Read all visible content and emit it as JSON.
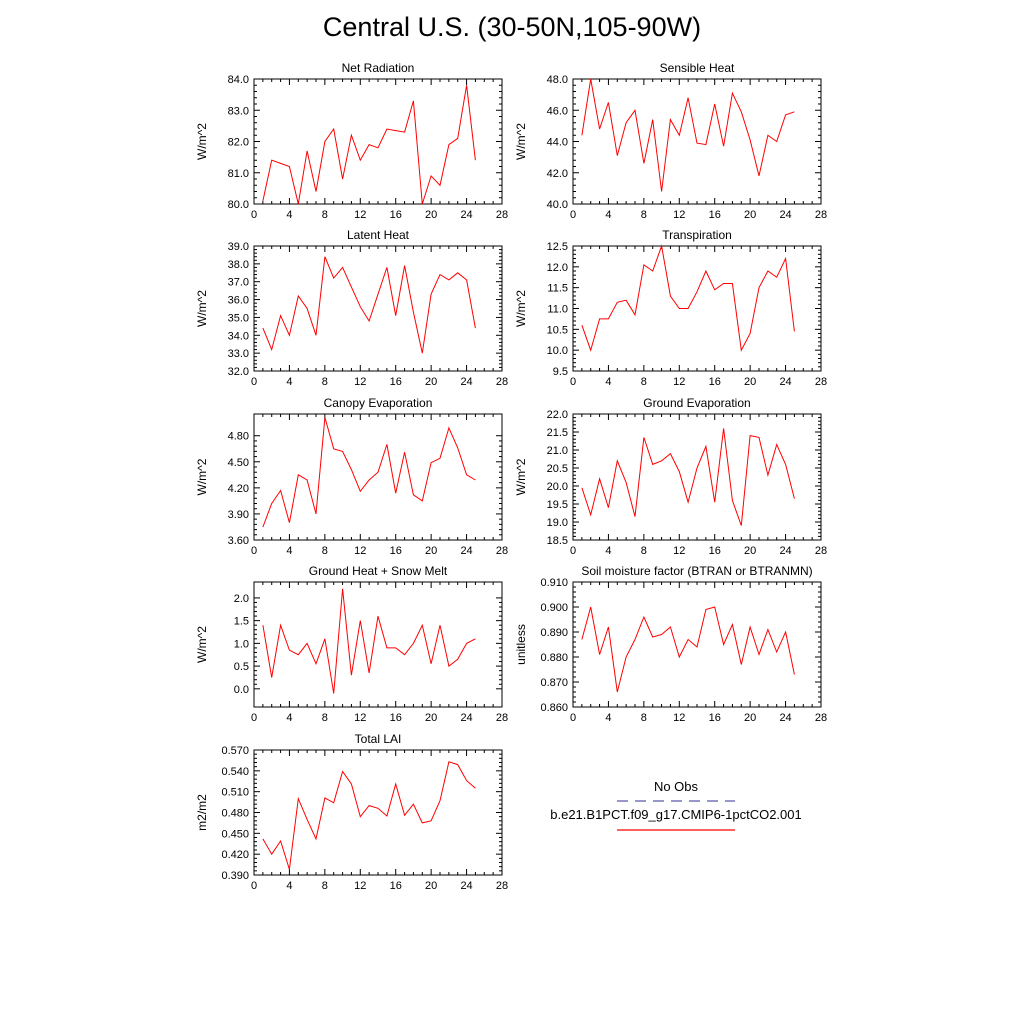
{
  "page": {
    "title": "Central U.S. (30-50N,105-90W)"
  },
  "legend": {
    "obs_label": "No Obs",
    "obs_color": "#5a5aa8",
    "model_label": "b.e21.B1PCT.f09_g17.CMIP6-1pctCO2.001",
    "model_color": "#ff0000"
  },
  "chart_data": [
    {
      "type": "line",
      "title": "Net Radiation",
      "ylabel": "W/m^2",
      "xlim": [
        0,
        28
      ],
      "xticks": [
        0,
        4,
        8,
        12,
        16,
        20,
        24,
        28
      ],
      "ylim": [
        80.0,
        84.0
      ],
      "yticks": [
        "80.0",
        "81.0",
        "82.0",
        "83.0",
        "84.0"
      ],
      "x": [
        1,
        2,
        3,
        4,
        5,
        6,
        7,
        8,
        9,
        10,
        11,
        12,
        13,
        14,
        15,
        16,
        17,
        18,
        19,
        20,
        21,
        22,
        23,
        24,
        25
      ],
      "y": [
        80.1,
        81.4,
        81.3,
        81.2,
        80.0,
        81.7,
        80.4,
        82.0,
        82.4,
        80.8,
        82.2,
        81.4,
        81.9,
        81.8,
        82.4,
        82.35,
        82.3,
        83.3,
        80.0,
        80.9,
        80.6,
        81.9,
        82.1,
        83.8,
        81.4
      ]
    },
    {
      "type": "line",
      "title": "Sensible Heat",
      "ylabel": "W/m^2",
      "xlim": [
        0,
        28
      ],
      "xticks": [
        0,
        4,
        8,
        12,
        16,
        20,
        24,
        28
      ],
      "ylim": [
        40.0,
        48.0
      ],
      "yticks": [
        "40.0",
        "42.0",
        "44.0",
        "46.0",
        "48.0"
      ],
      "x": [
        1,
        2,
        3,
        4,
        5,
        6,
        7,
        8,
        9,
        10,
        11,
        12,
        13,
        14,
        15,
        16,
        17,
        18,
        19,
        20,
        21,
        22,
        23,
        24,
        25
      ],
      "y": [
        44.4,
        48.0,
        44.8,
        46.5,
        43.1,
        45.2,
        46.0,
        42.6,
        45.4,
        40.8,
        45.4,
        44.4,
        46.8,
        43.9,
        43.8,
        46.4,
        43.7,
        47.1,
        45.9,
        44.1,
        41.8,
        44.4,
        44.0,
        45.7,
        45.9
      ]
    },
    {
      "type": "line",
      "title": "Latent Heat",
      "ylabel": "W/m^2",
      "xlim": [
        0,
        28
      ],
      "xticks": [
        0,
        4,
        8,
        12,
        16,
        20,
        24,
        28
      ],
      "ylim": [
        32.0,
        39.0
      ],
      "yticks": [
        "32.0",
        "33.0",
        "34.0",
        "35.0",
        "36.0",
        "37.0",
        "38.0",
        "39.0"
      ],
      "x": [
        1,
        2,
        3,
        4,
        5,
        6,
        7,
        8,
        9,
        10,
        11,
        12,
        13,
        14,
        15,
        16,
        17,
        18,
        19,
        20,
        21,
        22,
        23,
        24,
        25
      ],
      "y": [
        34.4,
        33.2,
        35.1,
        34.0,
        36.2,
        35.5,
        34.0,
        38.4,
        37.2,
        37.8,
        36.7,
        35.6,
        34.8,
        36.3,
        37.8,
        35.1,
        37.9,
        35.3,
        33.0,
        36.3,
        37.4,
        37.1,
        37.5,
        37.1,
        34.4
      ]
    },
    {
      "type": "line",
      "title": "Transpiration",
      "ylabel": "W/m^2",
      "xlim": [
        0,
        28
      ],
      "xticks": [
        0,
        4,
        8,
        12,
        16,
        20,
        24,
        28
      ],
      "ylim": [
        9.5,
        12.5
      ],
      "yticks": [
        "9.5",
        "10.0",
        "10.5",
        "11.0",
        "11.5",
        "12.0",
        "12.5"
      ],
      "x": [
        1,
        2,
        3,
        4,
        5,
        6,
        7,
        8,
        9,
        10,
        11,
        12,
        13,
        14,
        15,
        16,
        17,
        18,
        19,
        20,
        21,
        22,
        23,
        24,
        25
      ],
      "y": [
        10.6,
        10.0,
        10.75,
        10.75,
        11.15,
        11.2,
        10.85,
        12.05,
        11.9,
        12.5,
        11.3,
        11.0,
        11.0,
        11.4,
        11.9,
        11.45,
        11.6,
        11.6,
        10.0,
        10.4,
        11.5,
        11.9,
        11.75,
        12.2,
        10.45
      ]
    },
    {
      "type": "line",
      "title": "Canopy Evaporation",
      "ylabel": "W/m^2",
      "xlim": [
        0,
        28
      ],
      "xticks": [
        0,
        4,
        8,
        12,
        16,
        20,
        24,
        28
      ],
      "ylim": [
        3.6,
        5.05
      ],
      "yticks": [
        "3.60",
        "3.90",
        "4.20",
        "4.50",
        "4.80"
      ],
      "ytick_values": [
        3.6,
        3.9,
        4.2,
        4.5,
        4.8
      ],
      "x": [
        1,
        2,
        3,
        4,
        5,
        6,
        7,
        8,
        9,
        10,
        11,
        12,
        13,
        14,
        15,
        16,
        17,
        18,
        19,
        20,
        21,
        22,
        23,
        24,
        25
      ],
      "y": [
        3.75,
        4.02,
        4.17,
        3.8,
        4.35,
        4.29,
        3.9,
        5.01,
        4.65,
        4.62,
        4.41,
        4.16,
        4.29,
        4.38,
        4.7,
        4.14,
        4.61,
        4.12,
        4.05,
        4.49,
        4.54,
        4.89,
        4.66,
        4.35,
        4.29
      ]
    },
    {
      "type": "line",
      "title": "Ground Evaporation",
      "ylabel": "W/m^2",
      "xlim": [
        0,
        28
      ],
      "xticks": [
        0,
        4,
        8,
        12,
        16,
        20,
        24,
        28
      ],
      "ylim": [
        18.5,
        22.0
      ],
      "yticks": [
        "18.5",
        "19.0",
        "19.5",
        "20.0",
        "20.5",
        "21.0",
        "21.5",
        "22.0"
      ],
      "x": [
        1,
        2,
        3,
        4,
        5,
        6,
        7,
        8,
        9,
        10,
        11,
        12,
        13,
        14,
        15,
        16,
        17,
        18,
        19,
        20,
        21,
        22,
        23,
        24,
        25
      ],
      "y": [
        19.95,
        19.2,
        20.2,
        19.4,
        20.7,
        20.1,
        19.15,
        21.35,
        20.6,
        20.7,
        20.9,
        20.4,
        19.55,
        20.5,
        21.1,
        19.55,
        21.6,
        19.6,
        18.9,
        21.4,
        21.35,
        20.3,
        21.15,
        20.6,
        19.65
      ]
    },
    {
      "type": "line",
      "title": "Ground Heat + Snow Melt",
      "ylabel": "W/m^2",
      "xlim": [
        0,
        28
      ],
      "xticks": [
        0,
        4,
        8,
        12,
        16,
        20,
        24,
        28
      ],
      "ylim": [
        -0.4,
        2.35
      ],
      "yticks": [
        "0.0",
        "0.5",
        "1.0",
        "1.5",
        "2.0"
      ],
      "ytick_values": [
        0.0,
        0.5,
        1.0,
        1.5,
        2.0
      ],
      "x": [
        1,
        2,
        3,
        4,
        5,
        6,
        7,
        8,
        9,
        10,
        11,
        12,
        13,
        14,
        15,
        16,
        17,
        18,
        19,
        20,
        21,
        22,
        23,
        24,
        25
      ],
      "y": [
        1.4,
        0.25,
        1.4,
        0.85,
        0.75,
        1.0,
        0.55,
        1.1,
        -0.1,
        2.2,
        0.3,
        1.5,
        0.35,
        1.6,
        0.9,
        0.9,
        0.75,
        1.0,
        1.4,
        0.55,
        1.4,
        0.5,
        0.65,
        1.0,
        1.1
      ]
    },
    {
      "type": "line",
      "title": "Soil moisture factor (BTRAN or BTRANMN)",
      "ylabel": "unitless",
      "xlim": [
        0,
        28
      ],
      "xticks": [
        0,
        4,
        8,
        12,
        16,
        20,
        24,
        28
      ],
      "ylim": [
        0.86,
        0.91
      ],
      "yticks": [
        "0.860",
        "0.870",
        "0.880",
        "0.890",
        "0.900",
        "0.910"
      ],
      "x": [
        1,
        2,
        3,
        4,
        5,
        6,
        7,
        8,
        9,
        10,
        11,
        12,
        13,
        14,
        15,
        16,
        17,
        18,
        19,
        20,
        21,
        22,
        23,
        24,
        25
      ],
      "y": [
        0.887,
        0.9,
        0.881,
        0.892,
        0.866,
        0.88,
        0.887,
        0.896,
        0.888,
        0.889,
        0.892,
        0.88,
        0.887,
        0.884,
        0.899,
        0.9,
        0.885,
        0.893,
        0.877,
        0.892,
        0.881,
        0.891,
        0.882,
        0.89,
        0.873
      ]
    },
    {
      "type": "line",
      "title": "Total LAI",
      "ylabel": "m2/m2",
      "xlim": [
        0,
        28
      ],
      "xticks": [
        0,
        4,
        8,
        12,
        16,
        20,
        24,
        28
      ],
      "ylim": [
        0.39,
        0.57
      ],
      "yticks": [
        "0.390",
        "0.420",
        "0.450",
        "0.480",
        "0.510",
        "0.540",
        "0.570"
      ],
      "x": [
        1,
        2,
        3,
        4,
        5,
        6,
        7,
        8,
        9,
        10,
        11,
        12,
        13,
        14,
        15,
        16,
        17,
        18,
        19,
        20,
        21,
        22,
        23,
        24,
        25
      ],
      "y": [
        0.442,
        0.42,
        0.439,
        0.398,
        0.5,
        0.47,
        0.442,
        0.501,
        0.494,
        0.539,
        0.521,
        0.474,
        0.49,
        0.486,
        0.475,
        0.521,
        0.476,
        0.492,
        0.465,
        0.468,
        0.497,
        0.553,
        0.549,
        0.526,
        0.515
      ]
    }
  ]
}
